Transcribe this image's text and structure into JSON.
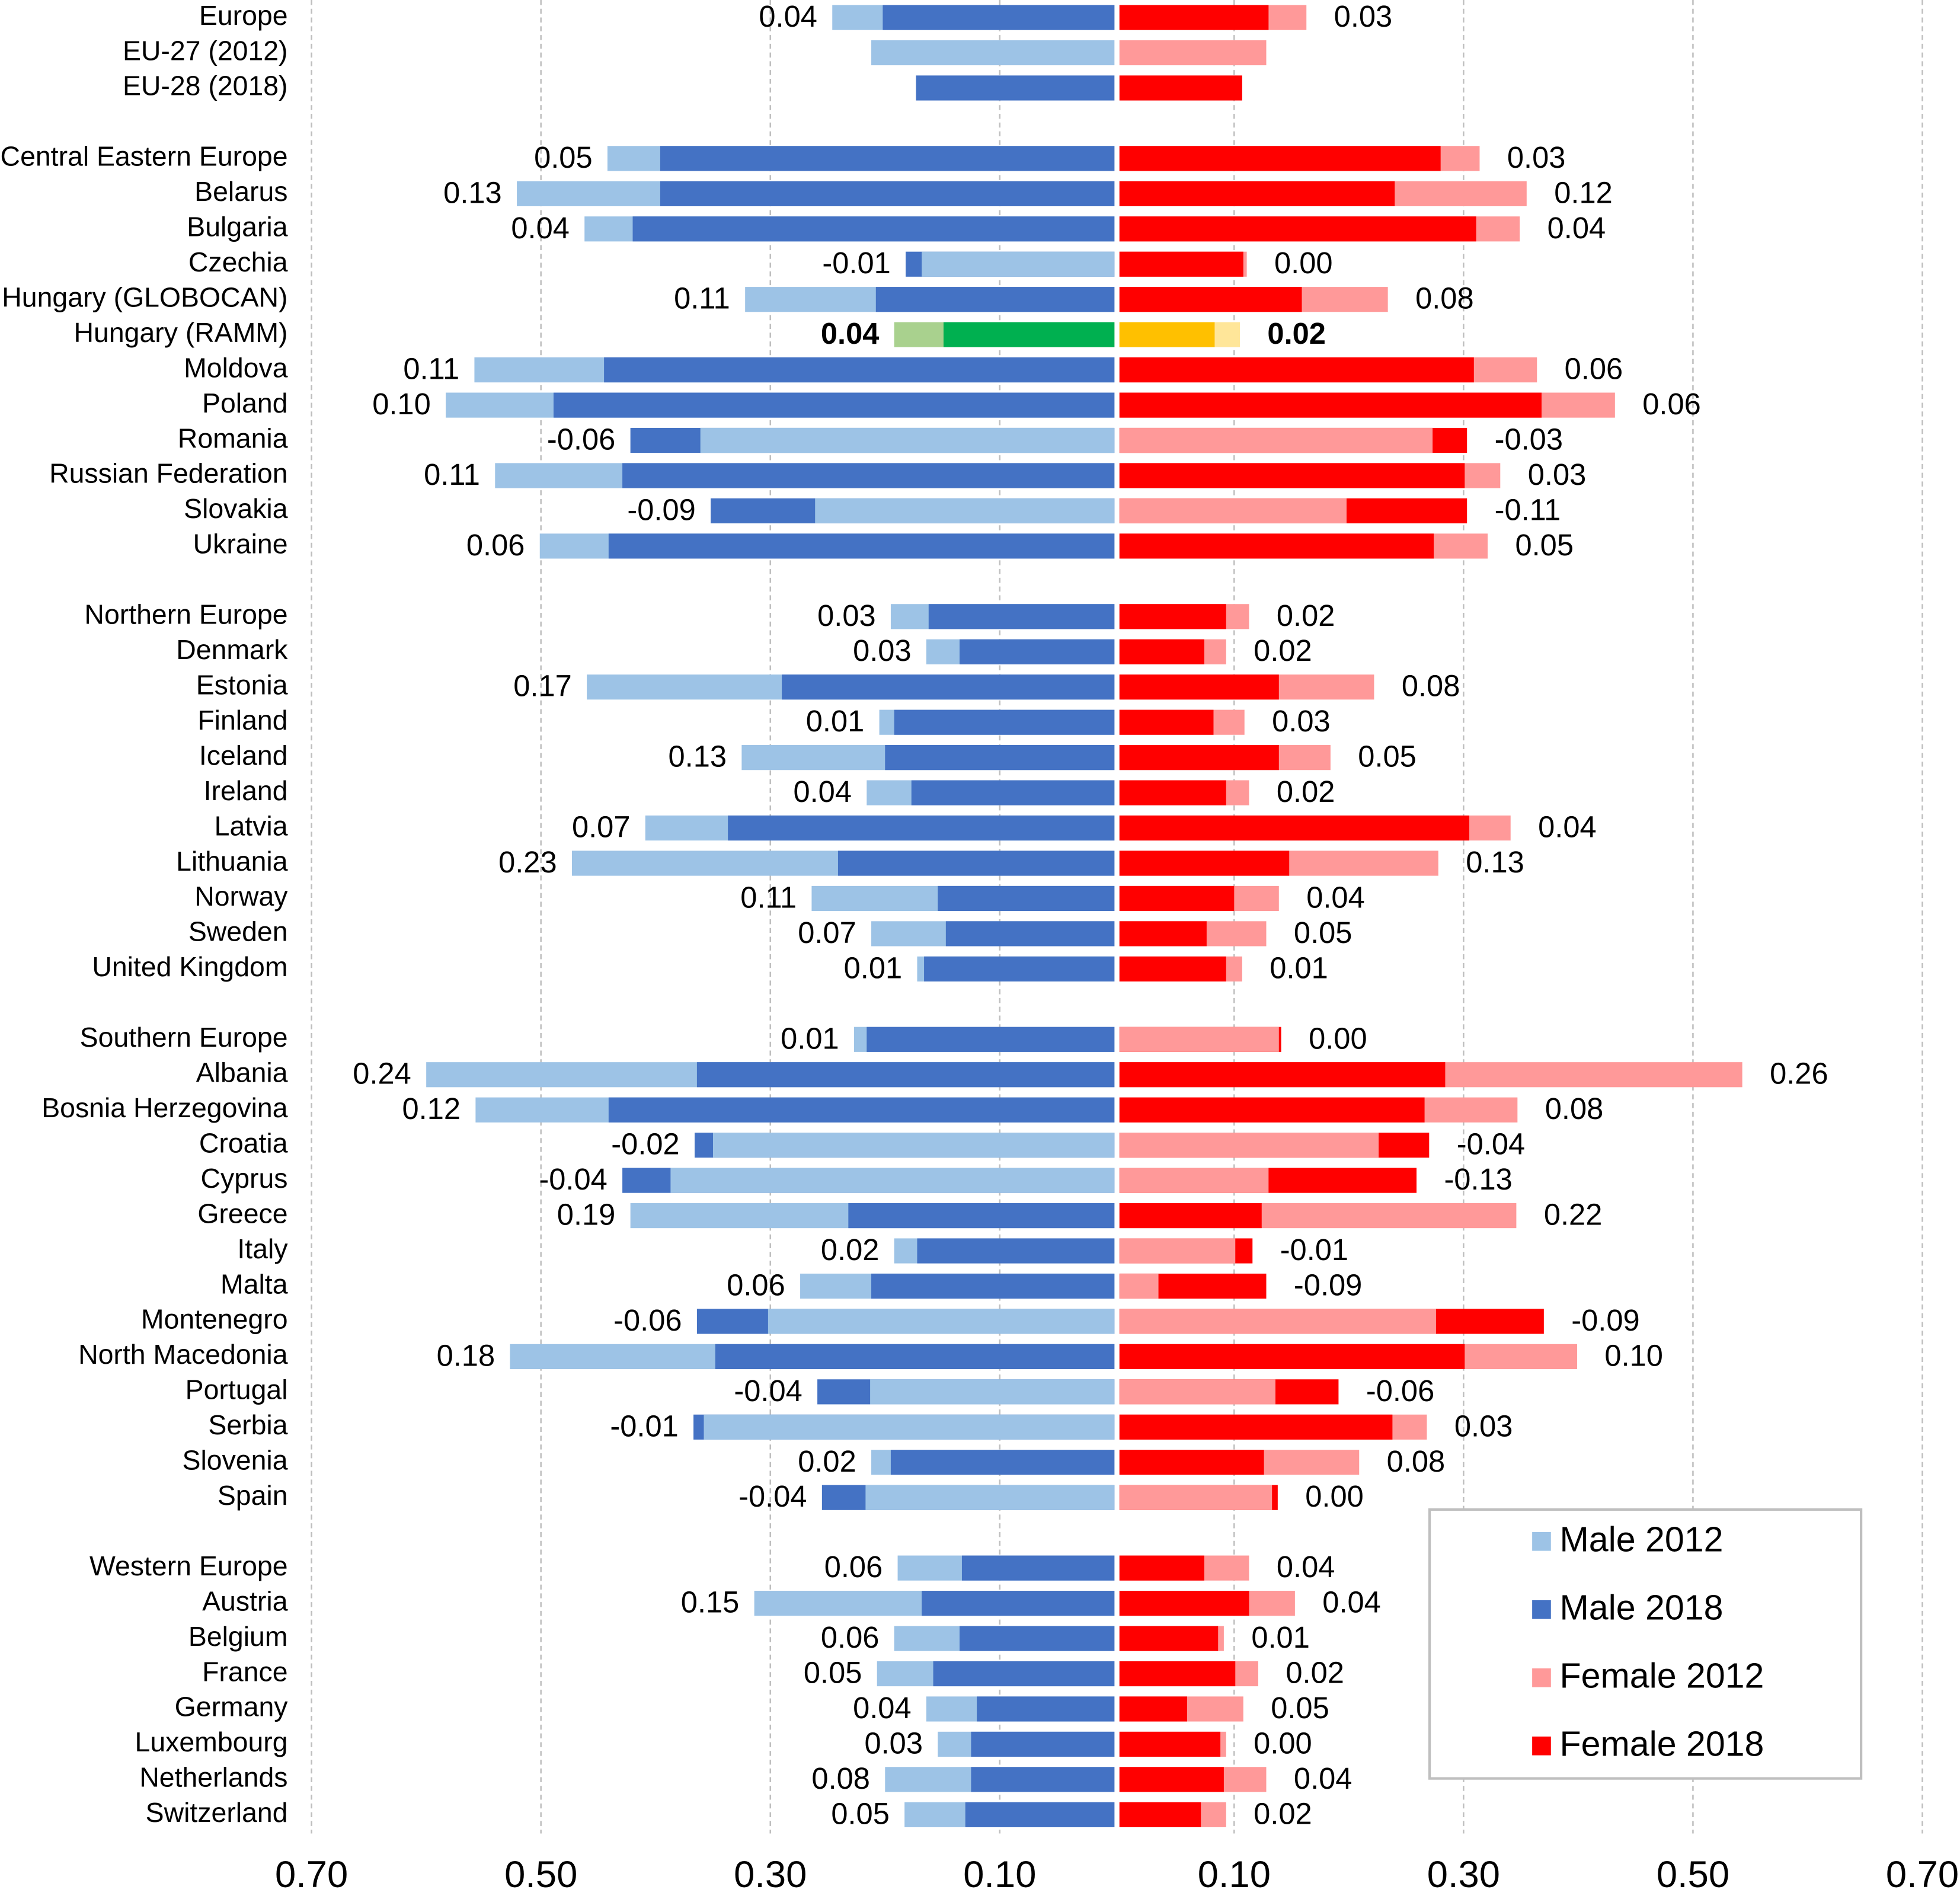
{
  "chart_data": {
    "type": "butterfly",
    "categories": [
      "Europe",
      "EU-27 (2012)",
      "EU-28 (2018)",
      null,
      "Central Eastern Europe",
      "Belarus",
      "Bulgaria",
      "Czechia",
      "Hungary (GLOBOCAN)",
      "Hungary (RAMM)",
      "Moldova",
      "Poland",
      "Romania",
      "Russian Federation",
      "Slovakia",
      "Ukraine",
      null,
      "Northern Europe",
      "Denmark",
      "Estonia",
      "Finland",
      "Iceland",
      "Ireland",
      "Latvia",
      "Lithuania",
      "Norway",
      "Sweden",
      "United Kingdom",
      null,
      "Southern Europe",
      "Albania",
      "Bosnia Herzegovina",
      "Croatia",
      "Cyprus",
      "Greece",
      "Italy",
      "Malta",
      "Montenegro",
      "North Macedonia",
      "Portugal",
      "Serbia",
      "Slovenia",
      "Spain",
      null,
      "Western Europe",
      "Austria",
      "Belgium",
      "France",
      "Germany",
      "Luxembourg",
      "Netherlands",
      "Switzerland"
    ],
    "series": [
      {
        "name": "Male 2012",
        "side": "left",
        "color": "#9dc3e6",
        "highlight_color": "#a9d18e",
        "values": [
          0.246,
          0.212,
          null,
          null,
          0.442,
          0.521,
          0.462,
          0.168,
          0.322,
          0.192,
          0.558,
          0.583,
          0.361,
          0.54,
          0.261,
          0.501,
          null,
          0.195,
          0.164,
          0.46,
          0.205,
          0.325,
          0.216,
          0.409,
          0.473,
          0.264,
          0.212,
          0.172,
          null,
          0.227,
          0.6,
          0.557,
          0.35,
          0.387,
          0.422,
          0.192,
          0.274,
          0.302,
          0.527,
          0.213,
          0.358,
          0.212,
          0.217,
          null,
          0.189,
          0.314,
          0.192,
          0.207,
          0.164,
          0.154,
          0.2,
          0.183
        ]
      },
      {
        "name": "Male 2018",
        "side": "left",
        "color": "#4472c4",
        "highlight_color": "#00b050",
        "values": [
          0.202,
          null,
          0.173,
          null,
          0.396,
          0.396,
          0.42,
          0.182,
          0.208,
          0.149,
          0.445,
          0.489,
          0.422,
          0.429,
          0.352,
          0.441,
          null,
          0.162,
          0.135,
          0.29,
          0.192,
          0.2,
          0.177,
          0.337,
          0.241,
          0.154,
          0.147,
          0.166,
          null,
          0.216,
          0.364,
          0.441,
          0.366,
          0.429,
          0.232,
          0.172,
          0.212,
          0.364,
          0.348,
          0.259,
          0.367,
          0.195,
          0.255,
          null,
          0.133,
          0.168,
          0.135,
          0.158,
          0.12,
          0.125,
          0.125,
          0.13
        ]
      },
      {
        "name": "Female 2012",
        "side": "right",
        "color": "#ff9999",
        "highlight_color": "#ffe699",
        "values": [
          0.163,
          0.128,
          null,
          null,
          0.314,
          0.355,
          0.349,
          0.111,
          0.234,
          0.105,
          0.364,
          0.432,
          0.273,
          0.332,
          0.198,
          0.321,
          null,
          0.113,
          0.093,
          0.222,
          0.109,
          0.184,
          0.113,
          0.341,
          0.278,
          0.139,
          0.128,
          0.107,
          null,
          0.139,
          0.543,
          0.347,
          0.226,
          0.13,
          0.346,
          0.101,
          0.034,
          0.276,
          0.399,
          0.136,
          0.268,
          0.209,
          0.133,
          null,
          0.113,
          0.153,
          0.091,
          0.121,
          0.108,
          0.093,
          0.128,
          0.093
        ]
      },
      {
        "name": "Female 2018",
        "side": "right",
        "color": "#ff0000",
        "highlight_color": "#ffc000",
        "values": [
          0.13,
          null,
          0.107,
          null,
          0.28,
          0.24,
          0.311,
          0.108,
          0.159,
          0.083,
          0.309,
          0.368,
          0.303,
          0.301,
          0.303,
          0.274,
          null,
          0.093,
          0.074,
          0.139,
          0.082,
          0.139,
          0.093,
          0.305,
          0.148,
          0.1,
          0.076,
          0.093,
          null,
          0.141,
          0.284,
          0.266,
          0.27,
          0.259,
          0.124,
          0.116,
          0.128,
          0.37,
          0.301,
          0.191,
          0.238,
          0.126,
          0.138,
          null,
          0.074,
          0.113,
          0.086,
          0.101,
          0.059,
          0.088,
          0.091,
          0.071
        ]
      }
    ],
    "male_change_labels": [
      "0.04",
      null,
      null,
      null,
      "0.05",
      "0.13",
      "0.04",
      "-0.01",
      "0.11",
      "0.04",
      "0.11",
      "0.10",
      "-0.06",
      "0.11",
      "-0.09",
      "0.06",
      null,
      "0.03",
      "0.03",
      "0.17",
      "0.01",
      "0.13",
      "0.04",
      "0.07",
      "0.23",
      "0.11",
      "0.07",
      "0.01",
      null,
      "0.01",
      "0.24",
      "0.12",
      "-0.02",
      "-0.04",
      "0.19",
      "0.02",
      "0.06",
      "-0.06",
      "0.18",
      "-0.04",
      "-0.01",
      "0.02",
      "-0.04",
      null,
      "0.06",
      "0.15",
      "0.06",
      "0.05",
      "0.04",
      "0.03",
      "0.08",
      "0.05"
    ],
    "female_change_labels": [
      "0.03",
      null,
      null,
      null,
      "0.03",
      "0.12",
      "0.04",
      "0.00",
      "0.08",
      "0.02",
      "0.06",
      "0.06",
      "-0.03",
      "0.03",
      "-0.11",
      "0.05",
      null,
      "0.02",
      "0.02",
      "0.08",
      "0.03",
      "0.05",
      "0.02",
      "0.04",
      "0.13",
      "0.04",
      "0.05",
      "0.01",
      null,
      "0.00",
      "0.26",
      "0.08",
      "-0.04",
      "-0.13",
      "0.22",
      "-0.01",
      "-0.09",
      "-0.09",
      "0.10",
      "-0.06",
      "0.03",
      "0.08",
      "0.00",
      null,
      "0.04",
      "0.04",
      "0.01",
      "0.02",
      "0.05",
      "0.00",
      "0.04",
      "0.02"
    ],
    "highlight_category": "Hungary (RAMM)",
    "xlim": [
      0,
      0.7
    ],
    "xticks": [
      {
        "value": 0.1,
        "label": "0.10"
      },
      {
        "value": 0.3,
        "label": "0.30"
      },
      {
        "value": 0.5,
        "label": "0.50"
      },
      {
        "value": 0.7,
        "label": "0.70"
      }
    ],
    "grid": true,
    "legend": "lower right"
  }
}
